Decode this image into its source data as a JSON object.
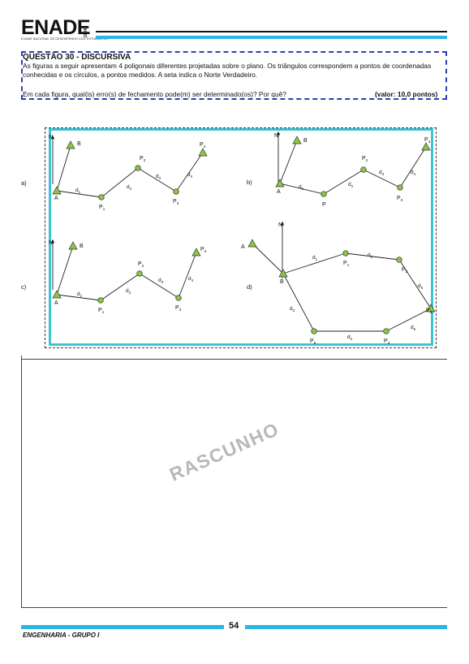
{
  "header": {
    "logo": "ENADE",
    "year": "2008",
    "subtitle": "EXAME NACIONAL DE DESEMPENHO DOS ESTUDANTES"
  },
  "question": {
    "title": "QUESTÃO 30 - DISCURSIVA",
    "text": "As figuras a seguir apresentam 4 poligonais diferentes projetadas sobre o plano. Os triângulos correspondem a pontos de coordenadas conhecidas e os círculos, a pontos medidos. A seta indica o Norte Verdadeiro.",
    "ask": "Em cada figura, qual(is) erro(s) de fechamento pode(m) ser determinado(os)? Por quê?",
    "value": "(valor: 10,0 pontos)"
  },
  "figures": {
    "a": {
      "label": "a)",
      "north": "N",
      "points": [
        "A",
        "B",
        "P1",
        "P2",
        "P3",
        "P4"
      ],
      "distances": [
        "d1",
        "d2",
        "d3",
        "d4"
      ]
    },
    "b": {
      "label": "b)",
      "north": "N",
      "points": [
        "A",
        "B",
        "P",
        "P2",
        "P3",
        "P4"
      ],
      "distances": [
        "d1",
        "d2",
        "d3",
        "d4"
      ]
    },
    "c": {
      "label": "c)",
      "north": "N",
      "points": [
        "A",
        "B",
        "P1",
        "P2",
        "P3",
        "P4"
      ],
      "distances": [
        "d1",
        "d2",
        "d3",
        "d4"
      ]
    },
    "d": {
      "label": "d)",
      "north": "N",
      "points": [
        "A",
        "B",
        "P1",
        "P2",
        "P3",
        "P4",
        "P5"
      ],
      "distances": [
        "d1",
        "d2",
        "d3",
        "d4",
        "d5",
        "d6"
      ]
    }
  },
  "draft": {
    "watermark": "RASCUNHO"
  },
  "footer": {
    "page": "54",
    "course": "ENGENHARIA - GRUPO I"
  },
  "colors": {
    "accent": "#29b6e6",
    "frame": "#3cc4d4",
    "box": "#2b3fb8",
    "point_fill": "#8bc63f"
  }
}
